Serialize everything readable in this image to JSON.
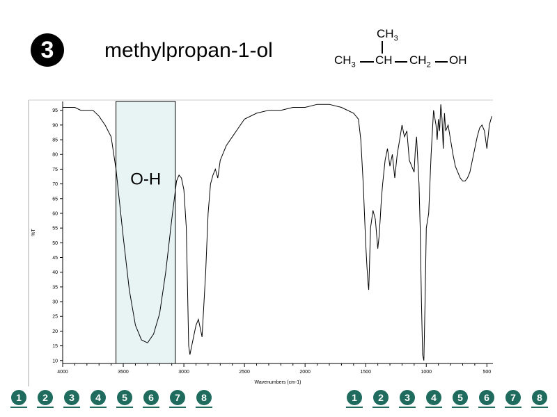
{
  "slide": {
    "number": "3",
    "compound_name": "methylpropan-1-ol"
  },
  "formula": {
    "top_group": "CH3",
    "chain": [
      "CH3",
      "CH",
      "CH2",
      "OH"
    ]
  },
  "nav": {
    "left": [
      "1",
      "2",
      "3",
      "4",
      "5",
      "6",
      "7",
      "8"
    ],
    "right": [
      "1",
      "2",
      "3",
      "4",
      "5",
      "6",
      "7",
      "8"
    ],
    "color": "#1f6b5e"
  },
  "chart_data": {
    "type": "line",
    "xlabel": "Wavenumbers (cm-1)",
    "ylabel": "%T",
    "xlim": [
      4000,
      450
    ],
    "ylim": [
      9,
      98
    ],
    "x_ticks": [
      4000,
      3500,
      3000,
      2500,
      2000,
      1500,
      1000,
      500
    ],
    "y_ticks": [
      10,
      15,
      20,
      25,
      30,
      35,
      40,
      45,
      50,
      55,
      60,
      65,
      70,
      75,
      80,
      85,
      90,
      95
    ],
    "highlight": {
      "label": "O-H",
      "x_from": 3560,
      "x_to": 3070,
      "color": "#e8f4f4"
    },
    "series": [
      {
        "x": [
          4000,
          3950,
          3900,
          3850,
          3800,
          3750,
          3700,
          3650,
          3600,
          3560,
          3500,
          3450,
          3400,
          3350,
          3300,
          3250,
          3200,
          3150,
          3100,
          3060,
          3040,
          3020,
          3000,
          2980,
          2970,
          2960,
          2950,
          2940,
          2920,
          2900,
          2880,
          2870,
          2860,
          2850,
          2820,
          2800,
          2780,
          2760,
          2740,
          2720,
          2700,
          2650,
          2600,
          2550,
          2500,
          2400,
          2300,
          2200,
          2100,
          2000,
          1900,
          1800,
          1700,
          1600,
          1560,
          1540,
          1520,
          1500,
          1490,
          1480,
          1475,
          1470,
          1460,
          1440,
          1420,
          1400,
          1390,
          1380,
          1370,
          1360,
          1340,
          1320,
          1300,
          1280,
          1260,
          1240,
          1220,
          1200,
          1180,
          1160,
          1140,
          1120,
          1100,
          1090,
          1080,
          1060,
          1050,
          1040,
          1030,
          1020,
          1010,
          1000,
          980,
          960,
          940,
          920,
          910,
          900,
          890,
          880,
          870,
          860,
          850,
          840,
          820,
          800,
          780,
          760,
          740,
          720,
          700,
          680,
          660,
          640,
          620,
          600,
          580,
          560,
          540,
          520,
          500,
          480,
          460
        ],
        "y": [
          96,
          96,
          96,
          95,
          95,
          95,
          93,
          90,
          86,
          75,
          52,
          34,
          22,
          17,
          16,
          19,
          26,
          40,
          58,
          71,
          73,
          72,
          68,
          55,
          35,
          15,
          12,
          14,
          18,
          22,
          24,
          22,
          20,
          18,
          40,
          60,
          70,
          73,
          75,
          72,
          78,
          83,
          86,
          89,
          92,
          94,
          95,
          95,
          96,
          96,
          97,
          97,
          96,
          94,
          92,
          85,
          70,
          50,
          42,
          36,
          34,
          40,
          55,
          61,
          58,
          48,
          52,
          58,
          65,
          70,
          78,
          82,
          76,
          80,
          72,
          80,
          85,
          90,
          86,
          88,
          78,
          76,
          74,
          82,
          86,
          70,
          55,
          30,
          12,
          10,
          30,
          55,
          60,
          80,
          95,
          90,
          85,
          92,
          88,
          97,
          92,
          82,
          94,
          88,
          90,
          85,
          80,
          76,
          74,
          72,
          71,
          71,
          72,
          74,
          78,
          82,
          86,
          89,
          90,
          88,
          82,
          90,
          93
        ]
      }
    ]
  }
}
